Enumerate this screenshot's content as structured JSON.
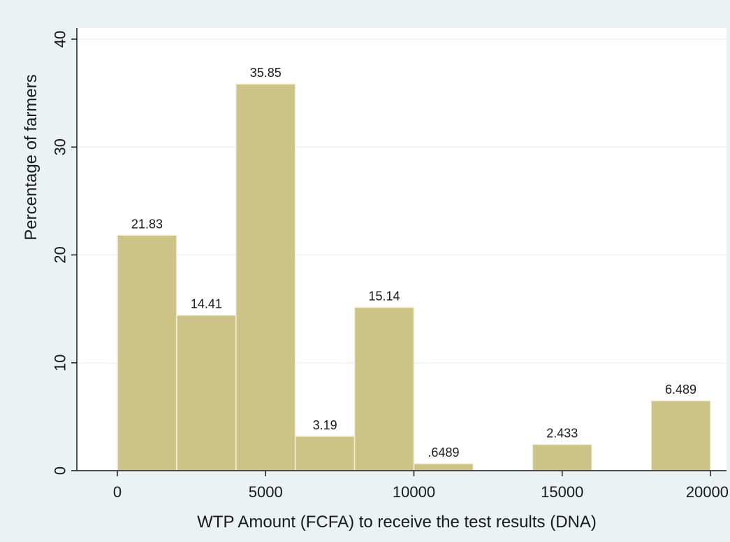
{
  "chart_data": {
    "type": "bar",
    "subtype": "histogram",
    "xlabel": "WTP Amount (FCFA) to receive the test results (DNA)",
    "ylabel": "Percentage of farmers",
    "xlim": [
      0,
      20000
    ],
    "ylim": [
      0,
      40
    ],
    "x_ticks": [
      0,
      5000,
      10000,
      15000,
      20000
    ],
    "y_ticks": [
      0,
      10,
      20,
      30,
      40
    ],
    "x_tick_labels": [
      "0",
      "5000",
      "10000",
      "15000",
      "20000"
    ],
    "y_tick_labels": [
      "0",
      "10",
      "20",
      "30",
      "40"
    ],
    "grid": "horizontal",
    "bin_width": 2000,
    "bars": [
      {
        "start": 0,
        "end": 2000,
        "value": 21.83,
        "label": "21.83"
      },
      {
        "start": 2000,
        "end": 4000,
        "value": 14.41,
        "label": "14.41"
      },
      {
        "start": 4000,
        "end": 6000,
        "value": 35.85,
        "label": "35.85"
      },
      {
        "start": 6000,
        "end": 8000,
        "value": 3.19,
        "label": "3.19"
      },
      {
        "start": 8000,
        "end": 10000,
        "value": 15.14,
        "label": "15.14"
      },
      {
        "start": 10000,
        "end": 12000,
        "value": 0.6489,
        "label": ".6489"
      },
      {
        "start": 14000,
        "end": 16000,
        "value": 2.433,
        "label": "2.433"
      },
      {
        "start": 18000,
        "end": 20000,
        "value": 6.489,
        "label": "6.489"
      }
    ],
    "colors": {
      "background": "#eaf2f3",
      "plot_background": "#ffffff",
      "bar_fill": "#cdc386",
      "bar_stroke": "#f3f0dc",
      "grid": "#eaf2f3",
      "axis": "#1a1a1a"
    }
  }
}
